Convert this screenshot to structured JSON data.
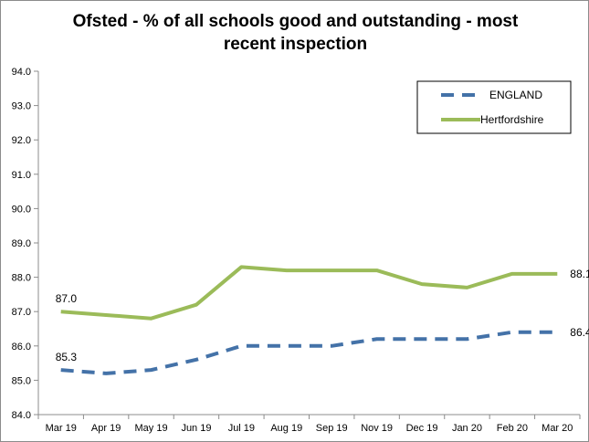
{
  "chart_data": {
    "type": "line",
    "title": "Ofsted - % of all schools good and outstanding - most recent inspection",
    "categories": [
      "Mar 19",
      "Apr 19",
      "May 19",
      "Jun 19",
      "Jul 19",
      "Aug 19",
      "Sep 19",
      "Nov 19",
      "Dec 19",
      "Jan 20",
      "Feb 20",
      "Mar 20"
    ],
    "ylim": [
      84.0,
      94.0
    ],
    "yticks": [
      "84.0",
      "85.0",
      "86.0",
      "87.0",
      "88.0",
      "89.0",
      "90.0",
      "91.0",
      "92.0",
      "93.0",
      "94.0"
    ],
    "grid": false,
    "legend": "top-right",
    "series": [
      {
        "name": "ENGLAND",
        "color": "#4472a8",
        "style": "dashed",
        "values": [
          85.3,
          85.2,
          85.3,
          85.6,
          86.0,
          86.0,
          86.0,
          86.2,
          86.2,
          86.2,
          86.4,
          86.4
        ],
        "labels": {
          "first": "85.3",
          "last": "86.4"
        }
      },
      {
        "name": "Hertfordshire",
        "color": "#9bbb59",
        "style": "solid",
        "values": [
          87.0,
          86.9,
          86.8,
          87.2,
          88.3,
          88.2,
          88.2,
          88.2,
          87.8,
          87.7,
          88.1,
          88.1
        ],
        "labels": {
          "first": "87.0",
          "last": "88.1"
        }
      }
    ]
  }
}
